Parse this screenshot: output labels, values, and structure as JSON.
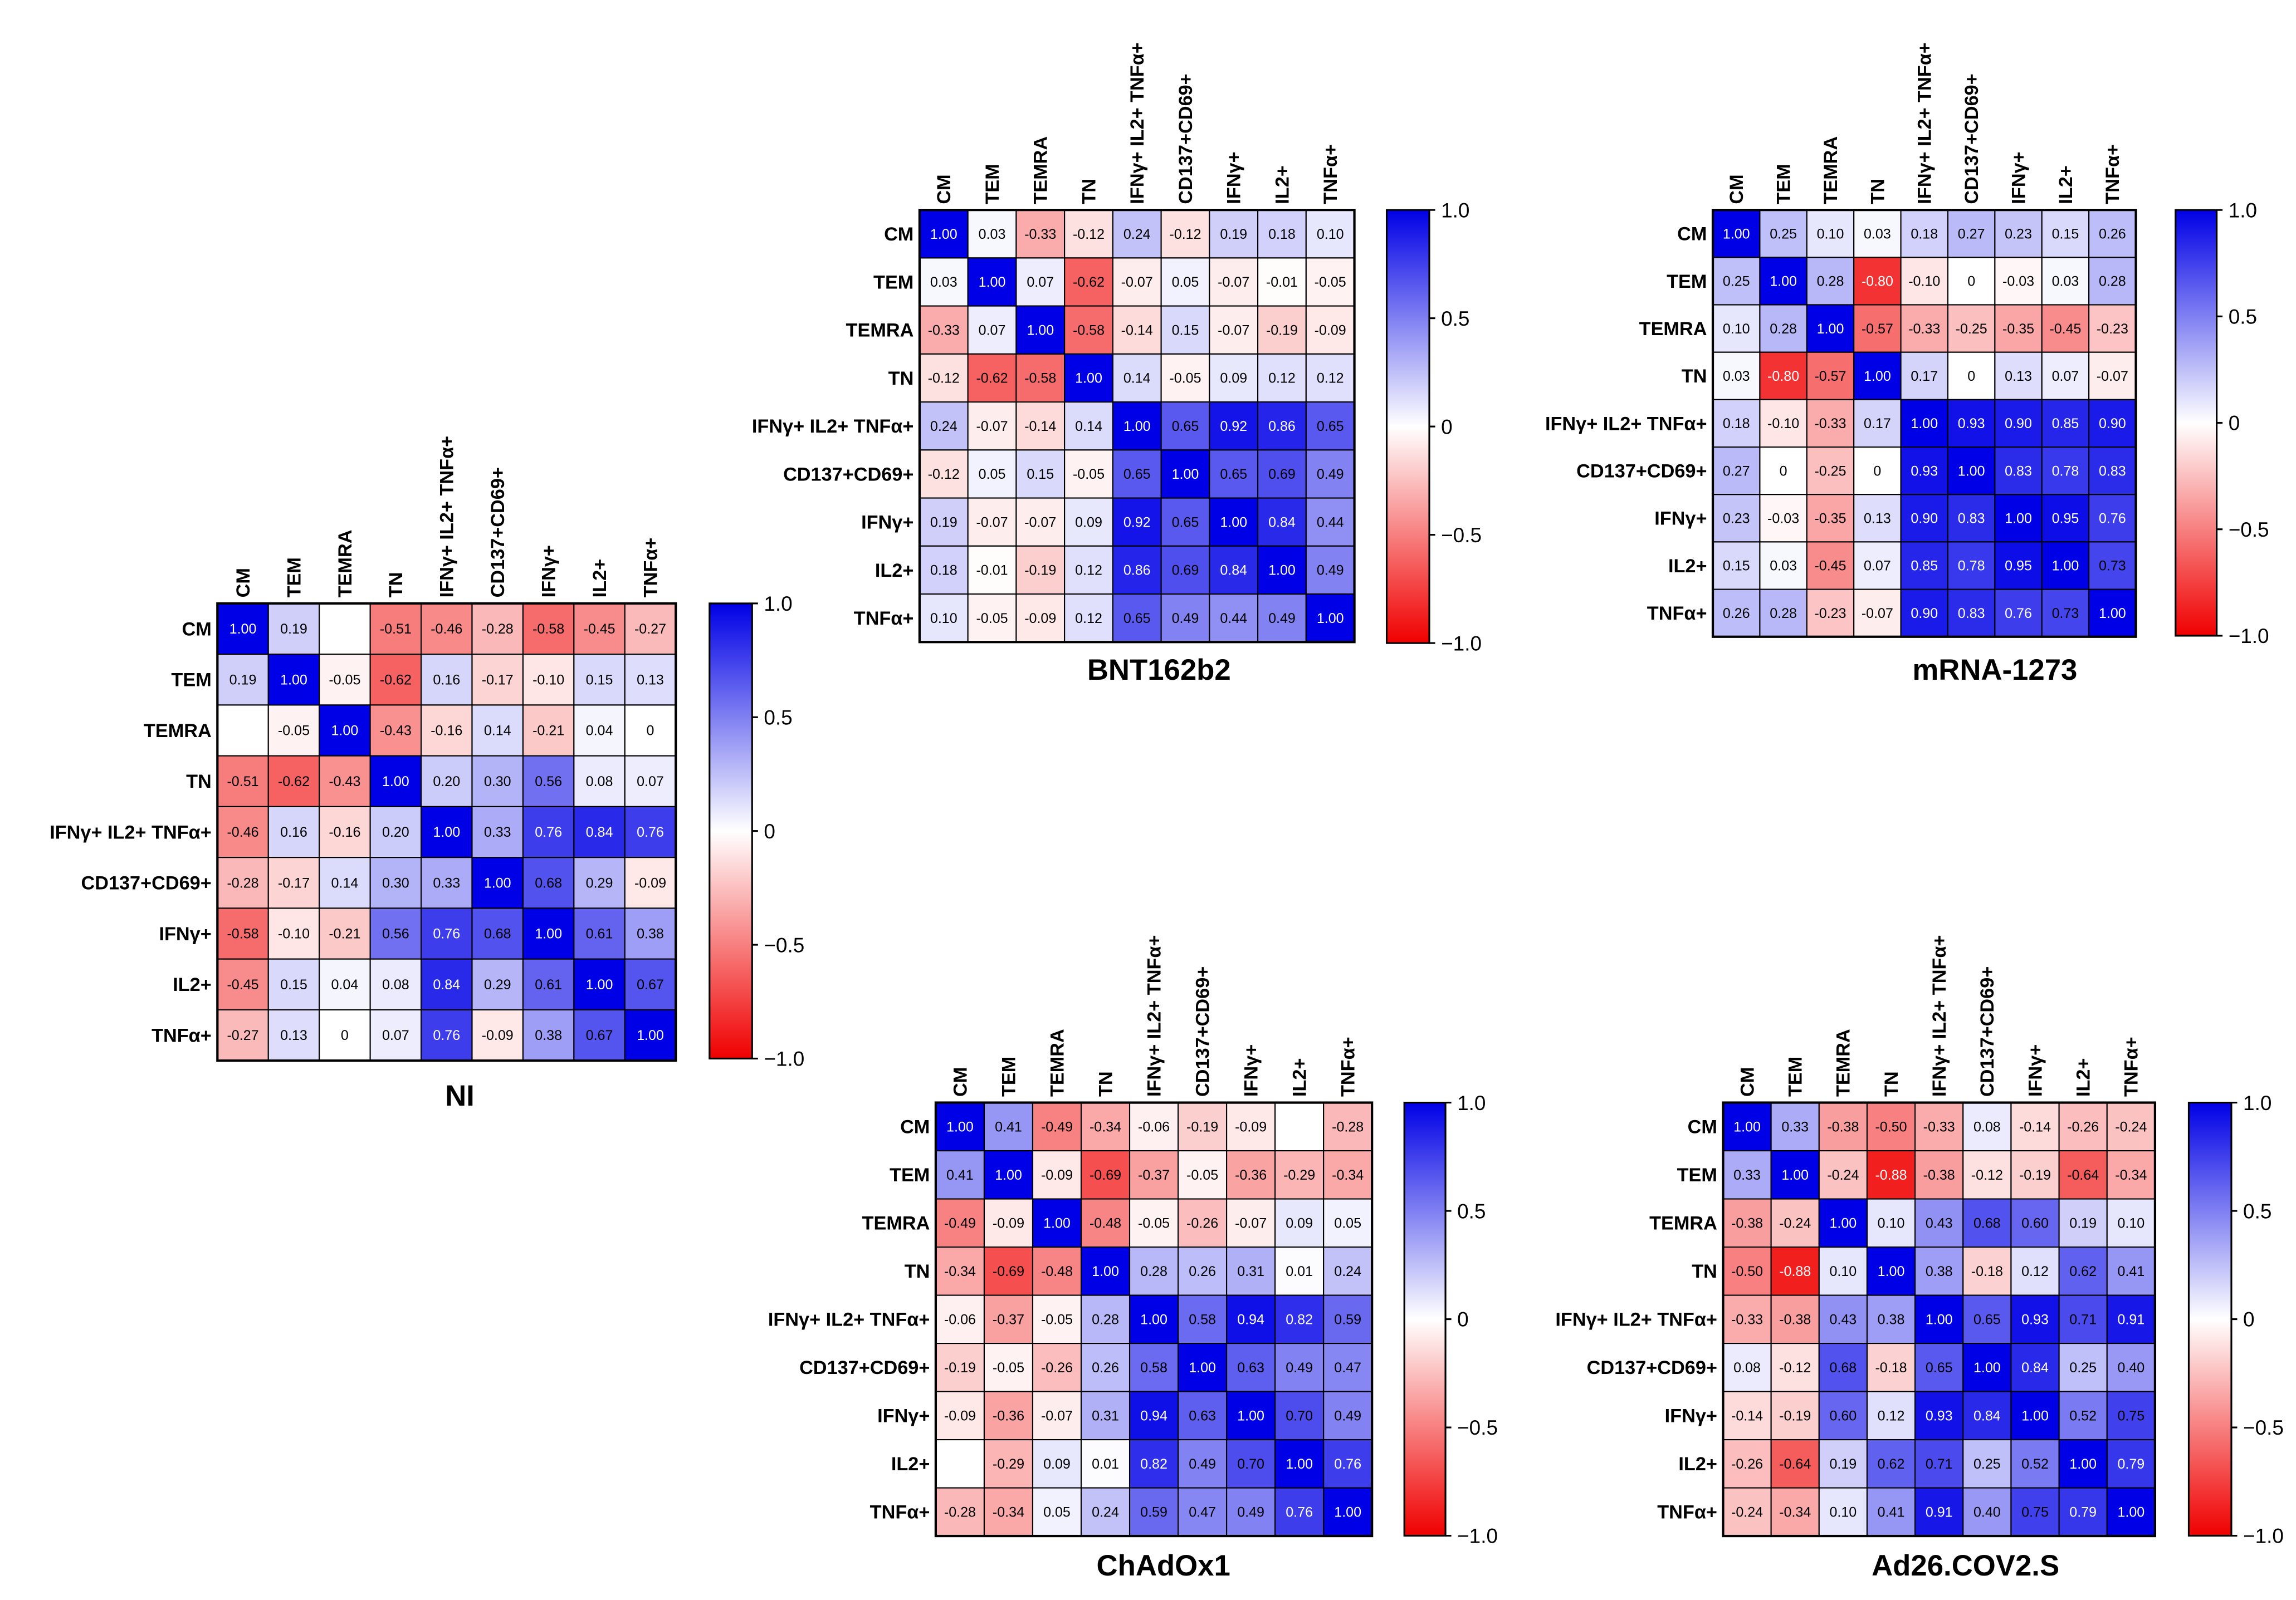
{
  "chart_data": [
    {
      "type": "heatmap",
      "title": "NI",
      "labels": [
        "CM",
        "TEM",
        "TEMRA",
        "TN",
        "IFNγ+ IL2+ TNFα+",
        "CD137+CD69+",
        "IFNγ+",
        "IL2+",
        "TNFα+"
      ],
      "matrix": [
        [
          1.0,
          0.19,
          null,
          -0.51,
          -0.46,
          -0.28,
          -0.58,
          -0.45,
          -0.27
        ],
        [
          0.19,
          1.0,
          -0.05,
          -0.62,
          0.16,
          -0.17,
          -0.1,
          0.15,
          0.13
        ],
        [
          null,
          -0.05,
          1.0,
          -0.43,
          -0.16,
          0.14,
          -0.21,
          0.04,
          0
        ],
        [
          -0.51,
          -0.62,
          -0.43,
          1.0,
          0.2,
          0.3,
          0.56,
          0.08,
          0.07
        ],
        [
          -0.46,
          0.16,
          -0.16,
          0.2,
          1.0,
          0.33,
          0.76,
          0.84,
          0.76
        ],
        [
          -0.28,
          -0.17,
          0.14,
          0.3,
          0.33,
          1.0,
          0.68,
          0.29,
          -0.09
        ],
        [
          -0.58,
          -0.1,
          -0.21,
          0.56,
          0.76,
          0.68,
          1.0,
          0.61,
          0.38
        ],
        [
          -0.45,
          0.15,
          0.04,
          0.08,
          0.84,
          0.29,
          0.61,
          1.0,
          0.67
        ],
        [
          -0.27,
          0.13,
          0,
          0.07,
          0.76,
          -0.09,
          0.38,
          0.67,
          1.0
        ]
      ],
      "colorbar": {
        "range": [
          -1.0,
          1.0
        ],
        "ticks": [
          "1.0",
          "0.5",
          "0",
          "−0.5",
          "−1.0"
        ]
      }
    },
    {
      "type": "heatmap",
      "title": "BNT162b2",
      "labels": [
        "CM",
        "TEM",
        "TEMRA",
        "TN",
        "IFNγ+ IL2+ TNFα+",
        "CD137+CD69+",
        "IFNγ+",
        "IL2+",
        "TNFα+"
      ],
      "matrix": [
        [
          1.0,
          0.03,
          -0.33,
          -0.12,
          0.24,
          -0.12,
          0.19,
          0.18,
          0.1
        ],
        [
          0.03,
          1.0,
          0.07,
          -0.62,
          -0.07,
          0.05,
          -0.07,
          -0.01,
          -0.05
        ],
        [
          -0.33,
          0.07,
          1.0,
          -0.58,
          -0.14,
          0.15,
          -0.07,
          -0.19,
          -0.09
        ],
        [
          -0.12,
          -0.62,
          -0.58,
          1.0,
          0.14,
          -0.05,
          0.09,
          0.12,
          0.12
        ],
        [
          0.24,
          -0.07,
          -0.14,
          0.14,
          1.0,
          0.65,
          0.92,
          0.86,
          0.65
        ],
        [
          -0.12,
          0.05,
          0.15,
          -0.05,
          0.65,
          1.0,
          0.65,
          0.69,
          0.49
        ],
        [
          0.19,
          -0.07,
          -0.07,
          0.09,
          0.92,
          0.65,
          1.0,
          0.84,
          0.44
        ],
        [
          0.18,
          -0.01,
          -0.19,
          0.12,
          0.86,
          0.69,
          0.84,
          1.0,
          0.49
        ],
        [
          0.1,
          -0.05,
          -0.09,
          0.12,
          0.65,
          0.49,
          0.44,
          0.49,
          1.0
        ]
      ],
      "colorbar": {
        "range": [
          -1.0,
          1.0
        ],
        "ticks": [
          "1.0",
          "0.5",
          "0",
          "−0.5",
          "−1.0"
        ]
      }
    },
    {
      "type": "heatmap",
      "title": "mRNA-1273",
      "labels": [
        "CM",
        "TEM",
        "TEMRA",
        "TN",
        "IFNγ+ IL2+ TNFα+",
        "CD137+CD69+",
        "IFNγ+",
        "IL2+",
        "TNFα+"
      ],
      "matrix": [
        [
          1.0,
          0.25,
          0.1,
          0.03,
          0.18,
          0.27,
          0.23,
          0.15,
          0.26
        ],
        [
          0.25,
          1.0,
          0.28,
          -0.8,
          -0.1,
          0,
          -0.03,
          0.03,
          0.28
        ],
        [
          0.1,
          0.28,
          1.0,
          -0.57,
          -0.33,
          -0.25,
          -0.35,
          -0.45,
          -0.23
        ],
        [
          0.03,
          -0.8,
          -0.57,
          1.0,
          0.17,
          0,
          0.13,
          0.07,
          -0.07
        ],
        [
          0.18,
          -0.1,
          -0.33,
          0.17,
          1.0,
          0.93,
          0.9,
          0.85,
          0.9
        ],
        [
          0.27,
          0,
          -0.25,
          0,
          0.93,
          1.0,
          0.83,
          0.78,
          0.83
        ],
        [
          0.23,
          -0.03,
          -0.35,
          0.13,
          0.9,
          0.83,
          1.0,
          0.95,
          0.76
        ],
        [
          0.15,
          0.03,
          -0.45,
          0.07,
          0.85,
          0.78,
          0.95,
          1.0,
          0.73
        ],
        [
          0.26,
          0.28,
          -0.23,
          -0.07,
          0.9,
          0.83,
          0.76,
          0.73,
          1.0
        ]
      ],
      "colorbar": {
        "range": [
          -1.0,
          1.0
        ],
        "ticks": [
          "1.0",
          "0.5",
          "0",
          "−0.5",
          "−1.0"
        ]
      }
    },
    {
      "type": "heatmap",
      "title": "ChAdOx1",
      "labels": [
        "CM",
        "TEM",
        "TEMRA",
        "TN",
        "IFNγ+ IL2+ TNFα+",
        "CD137+CD69+",
        "IFNγ+",
        "IL2+",
        "TNFα+"
      ],
      "matrix": [
        [
          1.0,
          0.41,
          -0.49,
          -0.34,
          -0.06,
          -0.19,
          -0.09,
          null,
          -0.28
        ],
        [
          0.41,
          1.0,
          -0.09,
          -0.69,
          -0.37,
          -0.05,
          -0.36,
          -0.29,
          -0.34
        ],
        [
          -0.49,
          -0.09,
          1.0,
          -0.48,
          -0.05,
          -0.26,
          -0.07,
          0.09,
          0.05
        ],
        [
          -0.34,
          -0.69,
          -0.48,
          1.0,
          0.28,
          0.26,
          0.31,
          0.01,
          0.24
        ],
        [
          -0.06,
          -0.37,
          -0.05,
          0.28,
          1.0,
          0.58,
          0.94,
          0.82,
          0.59
        ],
        [
          -0.19,
          -0.05,
          -0.26,
          0.26,
          0.58,
          1.0,
          0.63,
          0.49,
          0.47
        ],
        [
          -0.09,
          -0.36,
          -0.07,
          0.31,
          0.94,
          0.63,
          1.0,
          0.7,
          0.49
        ],
        [
          null,
          -0.29,
          0.09,
          0.01,
          0.82,
          0.49,
          0.7,
          1.0,
          0.76
        ],
        [
          -0.28,
          -0.34,
          0.05,
          0.24,
          0.59,
          0.47,
          0.49,
          0.76,
          1.0
        ]
      ],
      "colorbar": {
        "range": [
          -1.0,
          1.0
        ],
        "ticks": [
          "1.0",
          "0.5",
          "0",
          "−0.5",
          "−1.0"
        ]
      }
    },
    {
      "type": "heatmap",
      "title": "Ad26.COV2.S",
      "labels": [
        "CM",
        "TEM",
        "TEMRA",
        "TN",
        "IFNγ+ IL2+ TNFα+",
        "CD137+CD69+",
        "IFNγ+",
        "IL2+",
        "TNFα+"
      ],
      "matrix": [
        [
          1.0,
          0.33,
          -0.38,
          -0.5,
          -0.33,
          0.08,
          -0.14,
          -0.26,
          -0.24
        ],
        [
          0.33,
          1.0,
          -0.24,
          -0.88,
          -0.38,
          -0.12,
          -0.19,
          -0.64,
          -0.34
        ],
        [
          -0.38,
          -0.24,
          1.0,
          0.1,
          0.43,
          0.68,
          0.6,
          0.19,
          0.1
        ],
        [
          -0.5,
          -0.88,
          0.1,
          1.0,
          0.38,
          -0.18,
          0.12,
          0.62,
          0.41
        ],
        [
          -0.33,
          -0.38,
          0.43,
          0.38,
          1.0,
          0.65,
          0.93,
          0.71,
          0.91
        ],
        [
          0.08,
          -0.12,
          0.68,
          -0.18,
          0.65,
          1.0,
          0.84,
          0.25,
          0.4
        ],
        [
          -0.14,
          -0.19,
          0.6,
          0.12,
          0.93,
          0.84,
          1.0,
          0.52,
          0.75
        ],
        [
          -0.26,
          -0.64,
          0.19,
          0.62,
          0.71,
          0.25,
          0.52,
          1.0,
          0.79
        ],
        [
          -0.24,
          -0.34,
          0.1,
          0.41,
          0.91,
          0.4,
          0.75,
          0.79,
          1.0
        ]
      ],
      "colorbar": {
        "range": [
          -1.0,
          1.0
        ],
        "ticks": [
          "1.0",
          "0.5",
          "0",
          "−0.5",
          "−1.0"
        ]
      }
    }
  ],
  "colors": {
    "positive": "#0000e6",
    "negative": "#f00000",
    "neutral": "#ffffff",
    "text": "#000000"
  }
}
